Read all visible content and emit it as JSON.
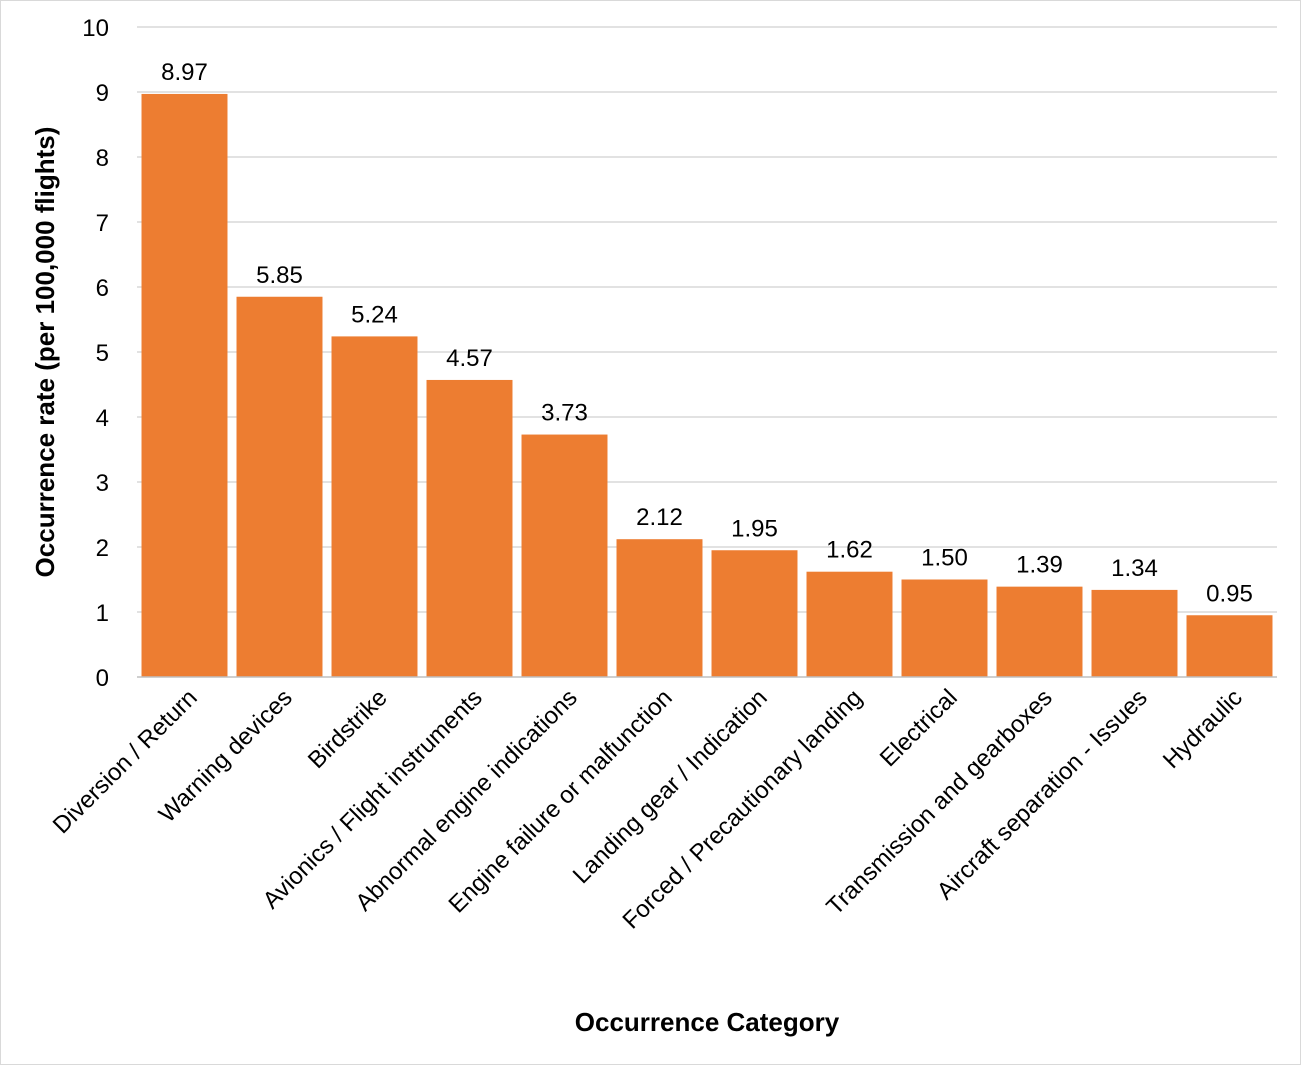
{
  "chart_data": {
    "type": "bar",
    "title": "",
    "xlabel": "Occurrence Category",
    "ylabel": "Occurrence rate (per 100,000 flights)",
    "ylim": [
      0,
      10
    ],
    "yticks": [
      "0",
      "1",
      "2",
      "3",
      "4",
      "5",
      "6",
      "7",
      "8",
      "9",
      "10"
    ],
    "grid": true,
    "legend": "none",
    "bar_color": "#ED7D31",
    "categories": [
      "Diversion / Return",
      "Warning devices",
      "Birdstrike",
      "Avionics / Flight instruments",
      "Abnormal engine indications",
      "Engine failure or malfunction",
      "Landing gear / Indication",
      "Forced / Precautionary landing",
      "Electrical",
      "Transmission and gearboxes",
      "Aircraft separation - Issues",
      "Hydraulic"
    ],
    "values": [
      8.97,
      5.85,
      5.24,
      4.57,
      3.73,
      2.12,
      1.95,
      1.62,
      1.5,
      1.39,
      1.34,
      0.95
    ],
    "data_labels": [
      "8.97",
      "5.85",
      "5.24",
      "4.57",
      "3.73",
      "2.12",
      "1.95",
      "1.62",
      "1.50",
      "1.39",
      "1.34",
      "0.95"
    ]
  }
}
